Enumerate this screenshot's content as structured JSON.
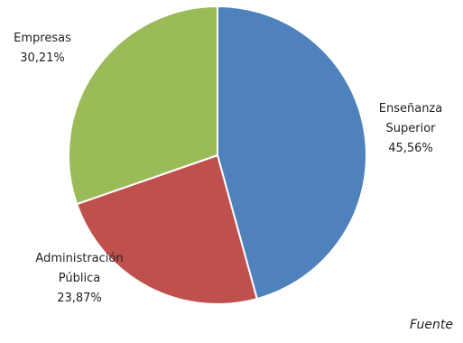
{
  "chart_data": {
    "type": "pie",
    "slices": [
      {
        "label": "Enseñanza Superior",
        "label_lines": [
          "Enseñanza",
          "Superior"
        ],
        "value": 45.56,
        "value_text": "45,56%",
        "color": "#4F81BD"
      },
      {
        "label": "Administración Pública",
        "label_lines": [
          "Administración",
          "Pública"
        ],
        "value": 23.87,
        "value_text": "23,87%",
        "color": "#C0504D"
      },
      {
        "label": "Empresas",
        "label_lines": [
          "Empresas"
        ],
        "value": 30.21,
        "value_text": "30,21%",
        "color": "#9BBB59"
      }
    ],
    "start_angle": "12 o'clock, clockwise"
  },
  "footer": {
    "source_text": "Fuente"
  }
}
